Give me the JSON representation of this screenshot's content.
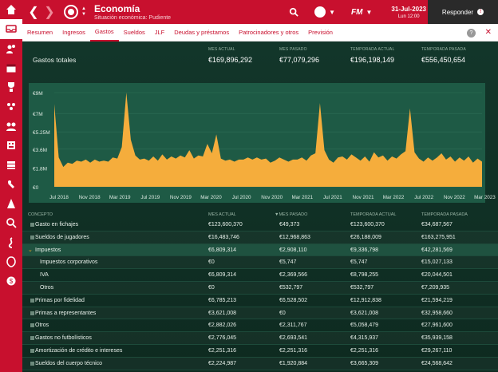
{
  "topbar": {
    "title": "Economía",
    "subtitle": "Situación económica: Pudiente",
    "date": "31-Jul-2023",
    "weekday": "Lun 12:00",
    "fm": "FM",
    "respond": "Responder",
    "respond_badge": "!"
  },
  "sidebar": {
    "items": [
      "home-icon",
      "inbox-icon",
      "squad-icon",
      "schedule-icon",
      "club-icon",
      "staff-icon",
      "tactics-icon",
      "finance-icon",
      "training-icon",
      "competitions-icon",
      "search-icon",
      "transfer-icon",
      "scouting-icon",
      "finance-coin-icon"
    ]
  },
  "tabs": {
    "items": [
      "Resumen",
      "Ingresos",
      "Gastos",
      "Sueldos",
      "JLF",
      "Deudas y préstamos",
      "Patrocinadores y otros",
      "Previsión"
    ],
    "active": "Gastos",
    "help": "?"
  },
  "summary": {
    "label": "Gastos totales",
    "cols": [
      {
        "h": "MES ACTUAL",
        "v": "€169,896,292"
      },
      {
        "h": "MES PASADO",
        "v": "€77,079,296"
      },
      {
        "h": "TEMPORADA ACTUAL",
        "v": "€196,198,149"
      },
      {
        "h": "TEMPORADA PASADA",
        "v": "€556,450,654"
      }
    ]
  },
  "chart_data": {
    "type": "area",
    "y_ticks": [
      "€9M",
      "€7M",
      "€5.25M",
      "€3.6M",
      "€1.8M",
      "€0"
    ],
    "ylim": [
      0,
      9
    ],
    "x_ticks": [
      "Jul 2018",
      "Nov 2018",
      "Mar 2019",
      "Jul 2019",
      "Nov 2019",
      "Mar 2020",
      "Jul 2020",
      "Nov 2020",
      "Mar 2021",
      "Jul 2021",
      "Nov 2021",
      "Mar 2022",
      "Jul 2022",
      "Nov 2022",
      "Mar 2023"
    ],
    "values": [
      7.9,
      2.8,
      1.9,
      2.3,
      2.2,
      2.5,
      2.4,
      2.6,
      2.3,
      2.6,
      2.4,
      2.5,
      2.4,
      2.8,
      2.7,
      3.8,
      9.0,
      4.5,
      3.0,
      2.6,
      2.7,
      2.5,
      2.9,
      2.5,
      3.1,
      2.6,
      2.9,
      2.7,
      3.0,
      2.8,
      3.5,
      2.7,
      3.0,
      2.9,
      4.1,
      3.2,
      5.0,
      2.7,
      2.5,
      2.6,
      2.4,
      2.6,
      2.6,
      2.8,
      2.6,
      2.8,
      2.6,
      2.7,
      2.3,
      2.5,
      2.8,
      2.6,
      2.4,
      2.6,
      2.6,
      2.8,
      2.5,
      3.0,
      3.2,
      8.0,
      3.5,
      2.6,
      2.3,
      2.8,
      2.9,
      2.6,
      3.1,
      2.8,
      2.5,
      2.9,
      2.4,
      3.3,
      2.8,
      3.0,
      2.5,
      2.9,
      2.7,
      3.1,
      3.4,
      7.5,
      3.3,
      2.7,
      2.4,
      2.8,
      2.5,
      2.8,
      3.2,
      2.6,
      2.9,
      2.4,
      2.8,
      2.5,
      2.9,
      2.3,
      2.7,
      2.4
    ],
    "area_color": "#f5ad3c",
    "background": "#1e5a45"
  },
  "table": {
    "headers": [
      "CONCEPTO",
      "MES ACTUAL",
      "MES PASADO",
      "TEMPORADA ACTUAL",
      "TEMPORADA PASADA"
    ],
    "rows": [
      {
        "name": "Gasto en fichajes",
        "c1": "€123,600,370",
        "c2": "€49,373",
        "c3": "€123,600,370",
        "c4": "€34,687,567",
        "kind": "top"
      },
      {
        "name": "Sueldos de jugadores",
        "c1": "€16,483,746",
        "c2": "€12,968,863",
        "c3": "€26,188,009",
        "c4": "€163,275,951",
        "kind": "top"
      },
      {
        "name": "Impuestos",
        "c1": "€6,809,314",
        "c2": "€2,908,110",
        "c3": "€9,336,798",
        "c4": "€42,281,569",
        "kind": "expanded"
      },
      {
        "name": "Impuestos corporativos",
        "c1": "€0",
        "c2": "€5,747",
        "c3": "€5,747",
        "c4": "€15,027,133",
        "kind": "sub"
      },
      {
        "name": "IVA",
        "c1": "€6,809,314",
        "c2": "€2,369,566",
        "c3": "€8,798,255",
        "c4": "€20,044,501",
        "kind": "sub"
      },
      {
        "name": "Otros",
        "c1": "€0",
        "c2": "€532,797",
        "c3": "€532,797",
        "c4": "€7,209,935",
        "kind": "sub"
      },
      {
        "name": "Primas por fidelidad",
        "c1": "€6,785,213",
        "c2": "€6,528,502",
        "c3": "€12,912,838",
        "c4": "€21,594,219",
        "kind": "top"
      },
      {
        "name": "Primas a representantes",
        "c1": "€3,621,008",
        "c2": "€0",
        "c3": "€3,621,008",
        "c4": "€32,958,660",
        "kind": "top"
      },
      {
        "name": "Otros",
        "c1": "€2,882,026",
        "c2": "€2,311,767",
        "c3": "€5,058,479",
        "c4": "€27,961,600",
        "kind": "top"
      },
      {
        "name": "Gastos no futbolísticos",
        "c1": "€2,776,045",
        "c2": "€2,693,541",
        "c3": "€4,315,937",
        "c4": "€35,939,158",
        "kind": "top"
      },
      {
        "name": "Amortización de crédito e intereses",
        "c1": "€2,251,316",
        "c2": "€2,251,316",
        "c3": "€2,251,316",
        "c4": "€29,267,110",
        "kind": "top"
      },
      {
        "name": "Sueldos del cuerpo técnico",
        "c1": "€2,224,987",
        "c2": "€1,920,884",
        "c3": "€3,665,309",
        "c4": "€24,568,642",
        "kind": "top"
      }
    ]
  }
}
